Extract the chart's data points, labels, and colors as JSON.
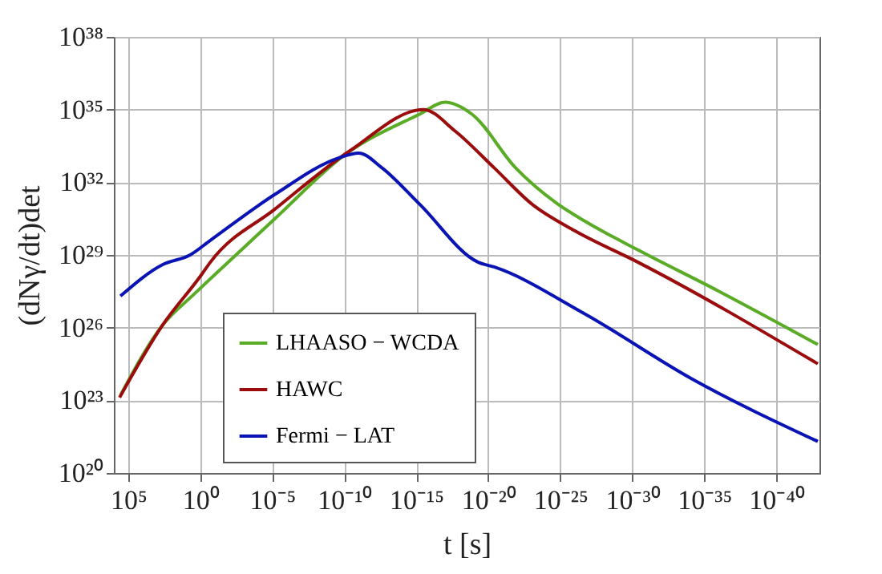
{
  "chart_data": {
    "type": "line",
    "xlabel": "t [s]",
    "ylabel": "(dNγ/dt)det",
    "log": "xy",
    "grid": true,
    "legend": "bottom left",
    "line_style": "solid",
    "marker": "none",
    "xlim": [
      1000000.0,
      1e-43
    ],
    "ylim": [
      1e+20,
      1e+38
    ],
    "xticks": [
      {
        "value": 100000.0,
        "label": "10⁵"
      },
      {
        "value": 1,
        "label": "10⁰"
      },
      {
        "value": 1e-05,
        "label": "10⁻⁵"
      },
      {
        "value": 1e-10,
        "label": "10⁻¹⁰"
      },
      {
        "value": 1e-15,
        "label": "10⁻¹⁵"
      },
      {
        "value": 1e-20,
        "label": "10⁻²⁰"
      },
      {
        "value": 1e-25,
        "label": "10⁻²⁵"
      },
      {
        "value": 1e-30,
        "label": "10⁻³⁰"
      },
      {
        "value": 1e-35,
        "label": "10⁻³⁵"
      },
      {
        "value": 1e-40,
        "label": "10⁻⁴⁰"
      }
    ],
    "yticks": [
      {
        "value": 1e+20,
        "label": "10²⁰"
      },
      {
        "value": 1e+23,
        "label": "10²³"
      },
      {
        "value": 1e+26,
        "label": "10²⁶"
      },
      {
        "value": 1e+29,
        "label": "10²⁹"
      },
      {
        "value": 1e+32,
        "label": "10³²"
      },
      {
        "value": 1e+35,
        "label": "10³⁵"
      },
      {
        "value": 1e+38,
        "label": "10³⁸"
      }
    ],
    "series": [
      {
        "name": "LHAASO − WCDA",
        "color": "#5aab26",
        "x": [
          350000.0,
          400.0,
          2.5,
          0.00063,
          6.3e-06,
          1e-10,
          6.3e-16,
          1e-17,
          1.3e-19,
          1.3e-22,
          1.6e-25,
          2e-27,
          4e-31,
          1e-36,
          1.3e-43
        ],
        "values": [
          1.6e+23,
          1.3e+26,
          2.5e+27,
          2.5e+29,
          3.2e+30,
          1.3e+33,
          6.3e+34,
          2e+35,
          6.3e+34,
          4e+32,
          1.3e+31,
          2.5e+30,
          1.6e+29,
          3.2e+27,
          2e+25
        ]
      },
      {
        "name": "HAWC",
        "color": "#9b0c0c",
        "x": [
          400000.0,
          400.0,
          1,
          0.2,
          6.3e-06,
          4e-11,
          3.2e-16,
          2e-18,
          4e-21,
          1e-23,
          1e-26,
          4e-31,
          1.3e-43
        ],
        "values": [
          1.3e+23,
          1.3e+26,
          1.3e+28,
          5e+28,
          7.9e+30,
          2e+33,
          1e+35,
          1.3e+34,
          4e+32,
          1.3e+31,
          1e+30,
          5e+28,
          3.2e+24
        ]
      },
      {
        "name": "Fermi − LAT",
        "color": "#0a14b4",
        "x": [
          350000.0,
          400.0,
          5,
          0.2,
          6.3e-06,
          2.5e-10,
          1e-11,
          2.5e-13,
          6.3e-16,
          5e-20,
          4e-21,
          2.5e-27,
          7.9e-35,
          1.3e-43
        ],
        "values": [
          2e+27,
          4e+28,
          1e+29,
          4e+29,
          3.2e+31,
          1e+33,
          1.6e+33,
          4e+32,
          1.3e+31,
          5e+28,
          3.2e+28,
          4e+26,
          7.9e+23,
          2e+21
        ]
      }
    ]
  }
}
